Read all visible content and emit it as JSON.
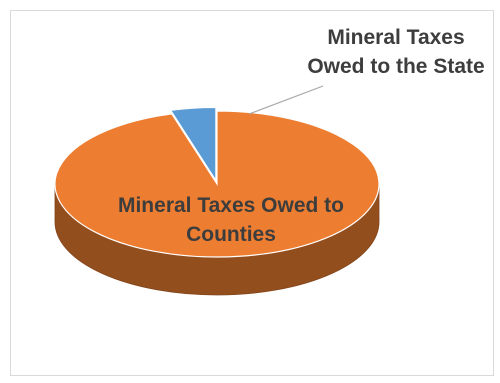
{
  "chart_data": {
    "type": "pie",
    "style": "3d-exploded",
    "categories": [
      "Mineral Taxes Owed to Counties",
      "Mineral Taxes Owed to the State"
    ],
    "values": [
      95.5,
      4.5
    ],
    "colors": [
      "#ed7d31",
      "#5b9bd5"
    ],
    "title": "",
    "legend": "none",
    "data_labels": [
      "Mineral Taxes Owed to Counties",
      "Mineral Taxes Owed to the State"
    ]
  }
}
